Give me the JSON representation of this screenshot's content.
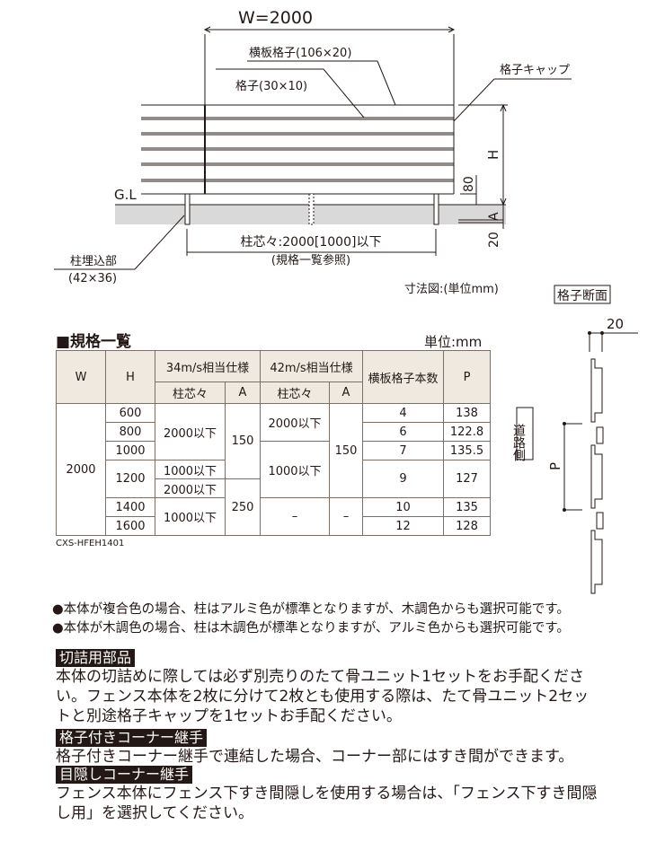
{
  "dimension_diagram": {
    "width_label": "W=2000",
    "horizontal_slat_label": "横板格子(106×20)",
    "lattice_label": "格子(30×10)",
    "lattice_cap_label": "格子キャップ",
    "ground_level_label": "G.L",
    "height_label": "H",
    "clearance_label": "80",
    "embed_depth_label": "A",
    "base_label": "20",
    "post_spacing_label": "柱芯々:2000[1000]以下",
    "post_spacing_note": "(規格一覧参照)",
    "post_embed_label": "柱埋込部",
    "post_embed_size": "(42×36)",
    "caption": "寸法図:(単位mm)"
  },
  "section_diagram": {
    "title": "格子断面",
    "thickness_label": "20",
    "pitch_label": "P",
    "road_side_label": "道路側"
  },
  "spec_table": {
    "title": "■規格一覧",
    "unit": "単位:mm",
    "headers": {
      "w": "W",
      "h": "H",
      "spec34": "34m/s相当仕様",
      "spec42": "42m/s相当仕様",
      "post_pitch": "柱芯々",
      "a": "A",
      "slat_count": "横板格子本数",
      "p": "P"
    },
    "w_value": "2000",
    "h_values": [
      "600",
      "800",
      "1000",
      "1200",
      "1400",
      "1600"
    ],
    "spec34_pitch": [
      "2000以下",
      "1000以下",
      "2000以下",
      "1000以下"
    ],
    "spec34_a": [
      "150",
      "250"
    ],
    "spec42_pitch": [
      "2000以下",
      "1000以下",
      "–"
    ],
    "spec42_a": [
      "150",
      "–"
    ],
    "slat_counts": [
      "4",
      "6",
      "7",
      "9",
      "10",
      "12"
    ],
    "p_values": [
      "138",
      "122.8",
      "135.5",
      "127",
      "135",
      "128"
    ],
    "product_code": "CXS-HFEH1401"
  },
  "notes": [
    "●本体が複合色の場合、柱はアルミ色が標準となりますが、木調色からも選択可能です。",
    "●本体が木調色の場合、柱は木調色が標準となりますが、アルミ色からも選択可能です。"
  ],
  "sections": [
    {
      "heading": "切詰用部品",
      "lines": [
        "本体の切詰めに際しては必ず別売りのたて骨ユニット1セットをお手配くださ",
        "い。フェンス本体を2枚に分けて2枚とも使用する際は、たて骨ユニット2セッ",
        "トと別途格子キャップを1セットお手配ください。"
      ]
    },
    {
      "heading": "格子付きコーナー継手",
      "lines": [
        "格子付きコーナー継手で連結した場合、コーナー部にはすき間ができます。"
      ]
    },
    {
      "heading": "目隠しコーナー継手",
      "lines": [
        "フェンス本体にフェンス下すき間隠しを使用する場合は、「フェンス下すき間隠",
        "し用」を選択してください。"
      ]
    }
  ],
  "colors": {
    "ink": "#231815",
    "header_fill": "#efe9df",
    "ground_fill": "#d9d9d9"
  }
}
